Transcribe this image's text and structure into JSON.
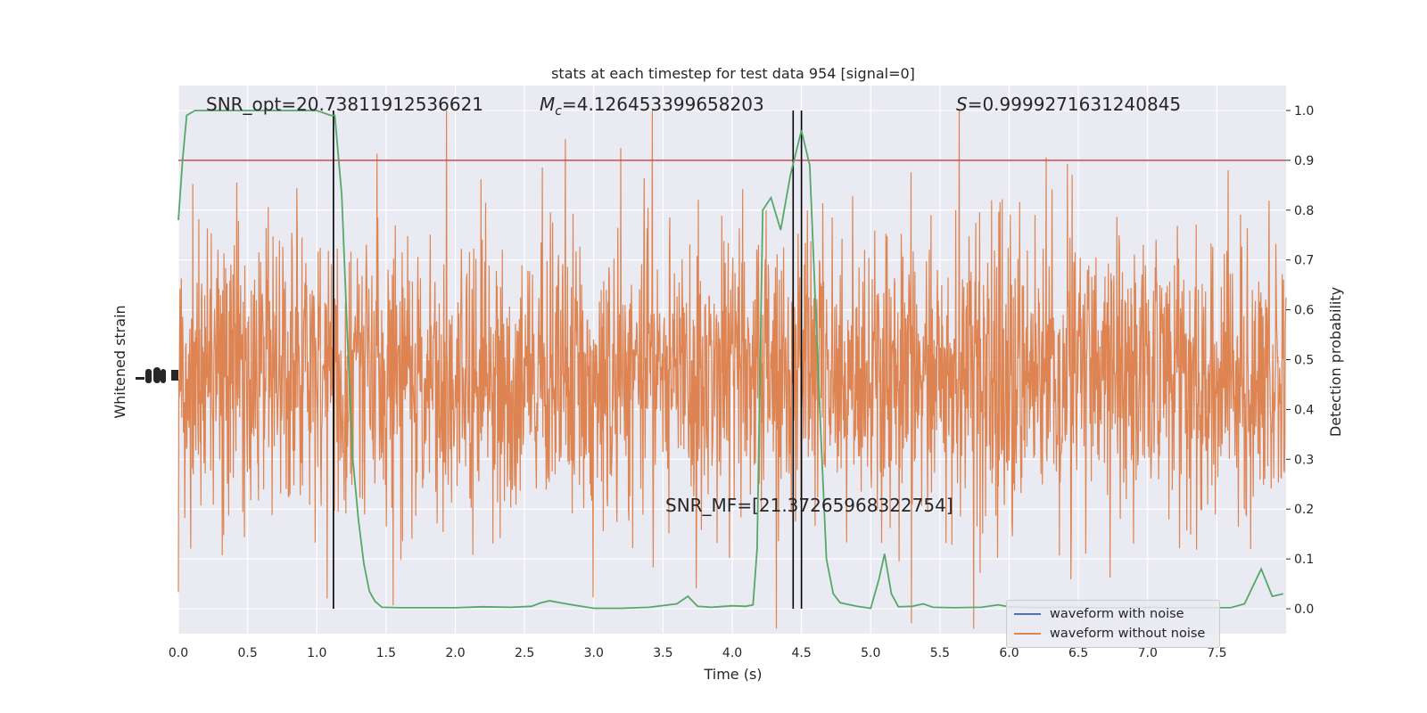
{
  "chart_data": {
    "type": "line",
    "title": "stats at each timestep for test data 954 [signal=0]",
    "xlabel": "Time (s)",
    "ylabel_left": "Whitened strain",
    "ylabel_right": "Detection probability",
    "xlim": [
      0.0,
      8.0
    ],
    "ylim_right": [
      -0.05,
      1.05
    ],
    "grid": true,
    "xticks": [
      "0.0",
      "0.5",
      "1.0",
      "1.5",
      "2.0",
      "2.5",
      "3.0",
      "3.5",
      "4.0",
      "4.5",
      "5.0",
      "5.5",
      "6.0",
      "6.5",
      "7.0",
      "7.5"
    ],
    "yticks_right": [
      "0.0",
      "0.1",
      "0.2",
      "0.3",
      "0.4",
      "0.5",
      "0.6",
      "0.7",
      "0.8",
      "0.9",
      "1.0"
    ],
    "annotations": {
      "snr_opt": "SNR_opt=20.73811912536621",
      "mc_symbol": "M",
      "mc_sub": "c",
      "mc_value": "=4.126453399658203",
      "s_symbol": "S",
      "s_value": "=0.9999271631240845",
      "snr_mf": "SNR_MF=[21.37265968322754]"
    },
    "threshold": 0.9,
    "vertical_lines": [
      1.12,
      4.44,
      4.5
    ],
    "legend": {
      "placement": "lower-right",
      "entries": [
        {
          "label": "waveform with noise",
          "color": "#4c72b0"
        },
        {
          "label": "waveform without noise",
          "color": "#dd8452"
        }
      ]
    },
    "series": [
      {
        "kind": "detection-probability",
        "color": "#55a868",
        "points": [
          [
            0.0,
            0.78
          ],
          [
            0.03,
            0.9
          ],
          [
            0.06,
            0.99
          ],
          [
            0.12,
            1.0
          ],
          [
            0.25,
            1.0
          ],
          [
            0.5,
            1.0
          ],
          [
            0.75,
            1.0
          ],
          [
            1.0,
            1.0
          ],
          [
            1.1,
            0.99
          ],
          [
            1.13,
            0.99
          ],
          [
            1.18,
            0.83
          ],
          [
            1.22,
            0.55
          ],
          [
            1.26,
            0.3
          ],
          [
            1.3,
            0.18
          ],
          [
            1.34,
            0.09
          ],
          [
            1.38,
            0.035
          ],
          [
            1.42,
            0.015
          ],
          [
            1.47,
            0.003
          ],
          [
            1.6,
            0.002
          ],
          [
            2.0,
            0.002
          ],
          [
            2.2,
            0.004
          ],
          [
            2.4,
            0.003
          ],
          [
            2.55,
            0.005
          ],
          [
            2.62,
            0.012
          ],
          [
            2.68,
            0.016
          ],
          [
            2.8,
            0.01
          ],
          [
            3.0,
            0.001
          ],
          [
            3.2,
            0.001
          ],
          [
            3.4,
            0.003
          ],
          [
            3.6,
            0.01
          ],
          [
            3.68,
            0.025
          ],
          [
            3.75,
            0.005
          ],
          [
            3.85,
            0.003
          ],
          [
            4.0,
            0.006
          ],
          [
            4.1,
            0.005
          ],
          [
            4.15,
            0.008
          ],
          [
            4.18,
            0.12
          ],
          [
            4.22,
            0.8
          ],
          [
            4.28,
            0.825
          ],
          [
            4.35,
            0.76
          ],
          [
            4.42,
            0.87
          ],
          [
            4.5,
            0.96
          ],
          [
            4.56,
            0.89
          ],
          [
            4.6,
            0.62
          ],
          [
            4.64,
            0.35
          ],
          [
            4.68,
            0.1
          ],
          [
            4.73,
            0.03
          ],
          [
            4.78,
            0.012
          ],
          [
            4.9,
            0.005
          ],
          [
            5.0,
            0.001
          ],
          [
            5.06,
            0.06
          ],
          [
            5.1,
            0.11
          ],
          [
            5.15,
            0.03
          ],
          [
            5.2,
            0.004
          ],
          [
            5.3,
            0.005
          ],
          [
            5.38,
            0.01
          ],
          [
            5.45,
            0.003
          ],
          [
            5.6,
            0.002
          ],
          [
            5.8,
            0.003
          ],
          [
            5.92,
            0.008
          ],
          [
            6.0,
            0.004
          ],
          [
            6.2,
            0.002
          ],
          [
            6.4,
            0.003
          ],
          [
            6.6,
            0.002
          ],
          [
            6.8,
            0.002
          ],
          [
            7.0,
            0.003
          ],
          [
            7.2,
            0.002
          ],
          [
            7.4,
            0.002
          ],
          [
            7.6,
            0.002
          ],
          [
            7.7,
            0.01
          ],
          [
            7.82,
            0.08
          ],
          [
            7.9,
            0.025
          ],
          [
            7.98,
            0.03
          ]
        ]
      }
    ]
  }
}
